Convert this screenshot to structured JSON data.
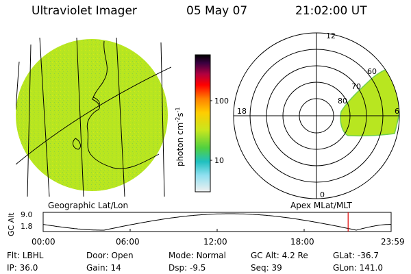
{
  "header": {
    "title": "Ultraviolet Imager",
    "date": "05 May 07",
    "time": "21:02:00 UT"
  },
  "globe": {
    "caption": "Geographic Lat/Lon"
  },
  "colorbar": {
    "unit_main": "photon cm",
    "unit_sup1": "-2",
    "unit_mid": "s",
    "unit_sup2": "-1",
    "ticks": [
      "100",
      "10"
    ]
  },
  "polar": {
    "caption": "Apex MLat/MLT",
    "mlt_labels": {
      "top": "12",
      "bottom": "0",
      "left": "18",
      "right": "6"
    },
    "lat_labels": [
      "60",
      "70",
      "80"
    ]
  },
  "altitude_plot": {
    "axis_title": "GC Alt",
    "y_ticks": [
      "9.0",
      "1.8"
    ],
    "x_ticks": [
      "00:00",
      "06:00",
      "12:00",
      "18:00",
      "23:59"
    ],
    "marker_color": "#e00000"
  },
  "footer": {
    "row1": [
      {
        "label": "Flt:",
        "value": "LBHL"
      },
      {
        "label": "Door:",
        "value": "Open"
      },
      {
        "label": "Mode:",
        "value": "Normal"
      },
      {
        "label": "GC Alt:",
        "value": "4.2 Re"
      },
      {
        "label": "GLat:",
        "value": "-36.7"
      }
    ],
    "row2": [
      {
        "label": "IP:",
        "value": "36.0"
      },
      {
        "label": "Gain:",
        "value": "14"
      },
      {
        "label": "Dsp:",
        "value": "-9.5"
      },
      {
        "label": "Seq:",
        "value": "39"
      },
      {
        "label": "GLon:",
        "value": "141.0"
      }
    ]
  },
  "colors": {
    "emission": "#b4e61e",
    "emission_edge": "#7cd24a"
  }
}
